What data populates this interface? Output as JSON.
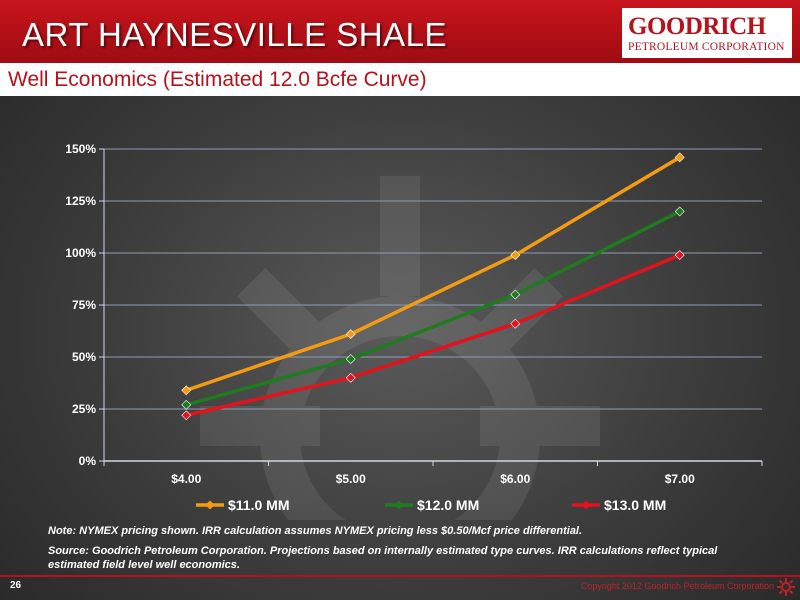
{
  "title": "ART HAYNESVILLE SHALE",
  "subtitle": "Well Economics (Estimated 12.0 Bcfe Curve)",
  "logo": {
    "name": "GOODRICH",
    "tagline": "PETROLEUM CORPORATION"
  },
  "notes": {
    "note": "Note: NYMEX pricing shown.  IRR calculation assumes NYMEX pricing less $0.50/Mcf price differential.",
    "source": "Source: Goodrich Petroleum Corporation. Projections based on internally estimated type curves.  IRR calculations reflect typical estimated field level well economics."
  },
  "footer": {
    "page_number": "26",
    "copyright": "Copyright 2012 Goodrich Petroleum Corporation",
    "icon": "sun-gear-icon"
  },
  "colors": {
    "brand_red": "#b5121b",
    "series": [
      "#f39c12",
      "#1e7b1e",
      "#e3121c"
    ]
  },
  "chart_data": {
    "type": "line",
    "title": "",
    "xlabel": "",
    "ylabel": "",
    "categories": [
      "$4.00",
      "$5.00",
      "$6.00",
      "$7.00"
    ],
    "y_ticks": [
      "0%",
      "25%",
      "50%",
      "75%",
      "100%",
      "125%",
      "150%"
    ],
    "ylim": [
      0,
      150
    ],
    "grid": true,
    "legend_position": "bottom",
    "series": [
      {
        "name": "$11.0 MM",
        "values": [
          34,
          61,
          99,
          146
        ]
      },
      {
        "name": "$12.0 MM",
        "values": [
          27,
          49,
          80,
          120
        ]
      },
      {
        "name": "$13.0 MM",
        "values": [
          22,
          40,
          66,
          99
        ]
      }
    ]
  }
}
